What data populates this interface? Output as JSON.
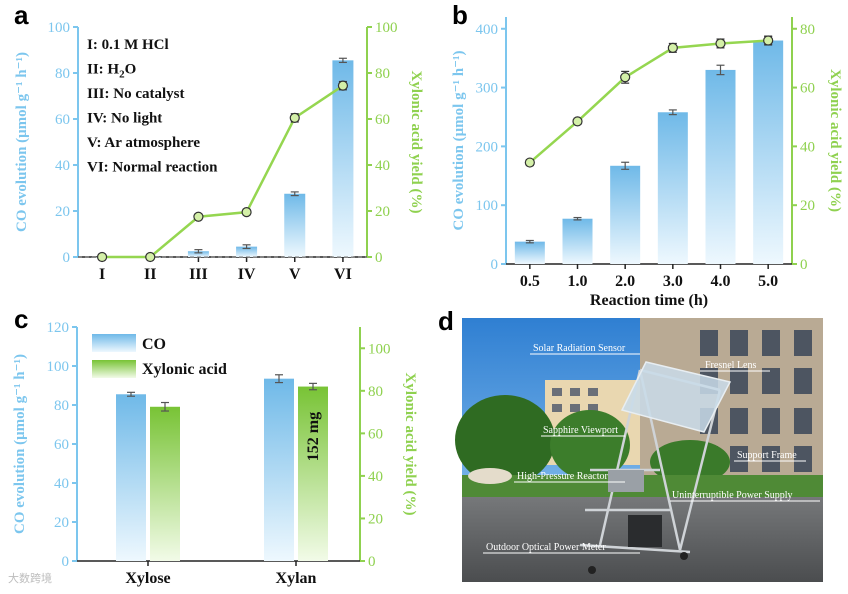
{
  "colors": {
    "co": "#8ecff2",
    "co_dark": "#6fb9e8",
    "xyl": "#95d650",
    "xyl_dark": "#78c335",
    "axis_left": "#7cc6ee",
    "axis_right": "#8fd14f"
  },
  "watermark": "大数跨境",
  "chart_data": [
    {
      "panel": "a",
      "type": "bar",
      "categories": [
        "I",
        "II",
        "III",
        "IV",
        "V",
        "VI"
      ],
      "series": [
        {
          "name": "CO evolution",
          "axis": "left",
          "values": [
            0,
            0,
            2.5,
            4.5,
            27.5,
            85.5
          ],
          "errors": [
            0.3,
            0.3,
            0.7,
            0.8,
            0.8,
            0.9
          ]
        },
        {
          "name": "Xylonic acid yield",
          "axis": "right",
          "type": "line",
          "values": [
            0,
            0,
            17.5,
            19.5,
            60.5,
            74.5
          ],
          "errors": [
            0.5,
            0.5,
            1.2,
            1.2,
            1.8,
            1.8
          ]
        }
      ],
      "ylabel": "CO evolution (μmol g⁻¹ h⁻¹)",
      "y2label": "Xylonic acid yield (%)",
      "ylim": [
        0,
        100
      ],
      "y2lim": [
        0,
        100
      ],
      "yticks": [
        0,
        20,
        40,
        60,
        80,
        100
      ],
      "y2ticks": [
        0,
        20,
        40,
        60,
        80,
        100
      ],
      "baseline": 0,
      "legend": [
        "I: 0.1 M HCl",
        "II: H2O",
        "III: No catalyst",
        "IV: No light",
        "V: Ar atmosphere",
        "VI: Normal reaction"
      ]
    },
    {
      "panel": "b",
      "type": "bar",
      "categories": [
        "0.5",
        "1.0",
        "2.0",
        "3.0",
        "4.0",
        "5.0"
      ],
      "series": [
        {
          "name": "CO evolution",
          "axis": "left",
          "values": [
            38,
            77,
            167,
            258,
            330,
            380
          ],
          "errors": [
            2,
            2,
            6,
            4,
            8,
            7
          ]
        },
        {
          "name": "Xylonic acid yield",
          "axis": "right",
          "type": "line",
          "values": [
            34.5,
            48.5,
            63.5,
            73.5,
            75,
            76
          ],
          "errors": [
            1,
            1,
            2,
            1.5,
            1.5,
            1.5
          ]
        }
      ],
      "xlabel": "Reaction time (h)",
      "ylabel": "CO evolution (μmol g⁻¹ h⁻¹)",
      "y2label": "Xylonic acid yield (%)",
      "ylim": [
        0,
        420
      ],
      "y2lim": [
        0,
        84
      ],
      "yticks": [
        0,
        100,
        200,
        300,
        400
      ],
      "y2ticks": [
        0,
        20,
        40,
        60,
        80
      ]
    },
    {
      "panel": "c",
      "type": "bar",
      "categories": [
        "Xylose",
        "Xylan"
      ],
      "series": [
        {
          "name": "CO",
          "axis": "left",
          "values": [
            85.5,
            93.5
          ],
          "errors": [
            1,
            2
          ]
        },
        {
          "name": "Xylonic acid",
          "axis": "right",
          "values": [
            72.5,
            82
          ],
          "errors": [
            2,
            1.5
          ]
        }
      ],
      "annotation": "152 mg",
      "ylabel": "CO evolution (μmol g⁻¹ h⁻¹)",
      "y2label": "Xylonic acid yield (%)",
      "ylim": [
        0,
        120
      ],
      "y2lim": [
        0,
        110
      ],
      "yticks": [
        0,
        20,
        40,
        60,
        80,
        100,
        120
      ],
      "y2ticks": [
        0,
        20,
        40,
        60,
        80,
        100
      ]
    }
  ],
  "photo": {
    "panel": "d",
    "labels": [
      "Solar Radiation Sensor",
      "Fresnel Lens",
      "Sapphire Viewport",
      "Support Frame",
      "High-Pressure Reactor",
      "Uninterruptible Power Supply",
      "Outdoor Optical Power Meter"
    ]
  }
}
